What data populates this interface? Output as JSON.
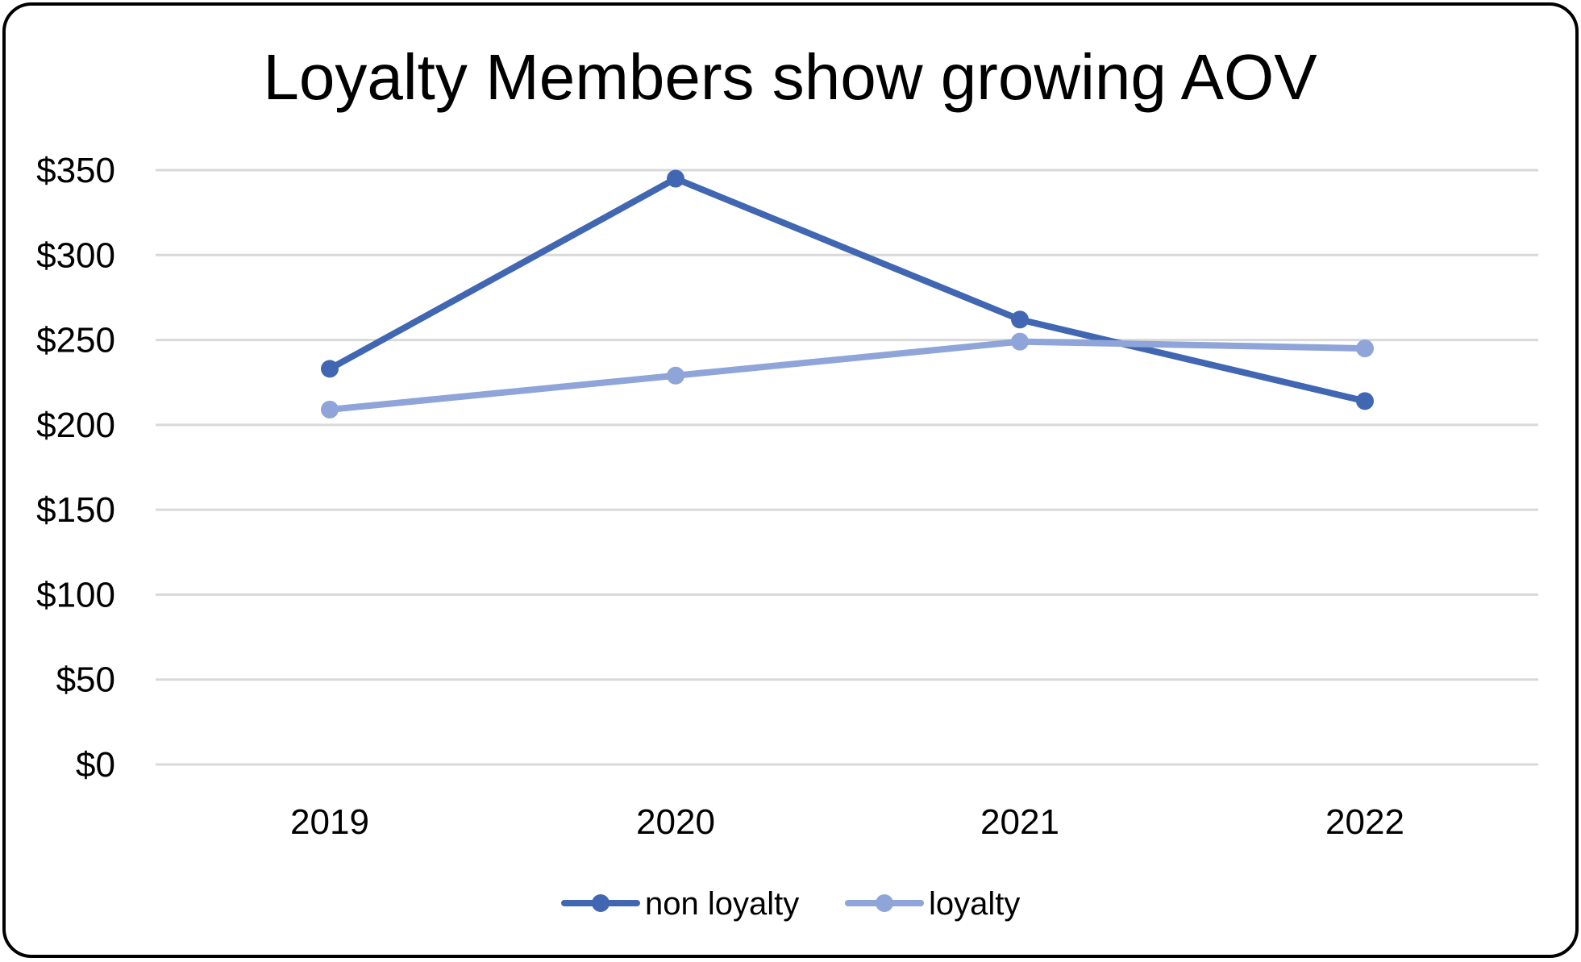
{
  "chart_data": {
    "type": "line",
    "title": "Loyalty Members show growing AOV",
    "xlabel": "",
    "ylabel": "",
    "categories": [
      "2019",
      "2020",
      "2021",
      "2022"
    ],
    "ylim": [
      0,
      350
    ],
    "yticks": [
      0,
      50,
      100,
      150,
      200,
      250,
      300,
      350
    ],
    "ytick_labels": [
      "$0",
      "$50",
      "$100",
      "$150",
      "$200",
      "$250",
      "$300",
      "$350"
    ],
    "grid": true,
    "legend": "bottom",
    "series": [
      {
        "name": "non loyalty",
        "color": "#4267b2",
        "values": [
          233,
          345,
          262,
          214
        ]
      },
      {
        "name": "loyalty",
        "color": "#8fa4d8",
        "values": [
          209,
          229,
          249,
          245
        ]
      }
    ]
  }
}
